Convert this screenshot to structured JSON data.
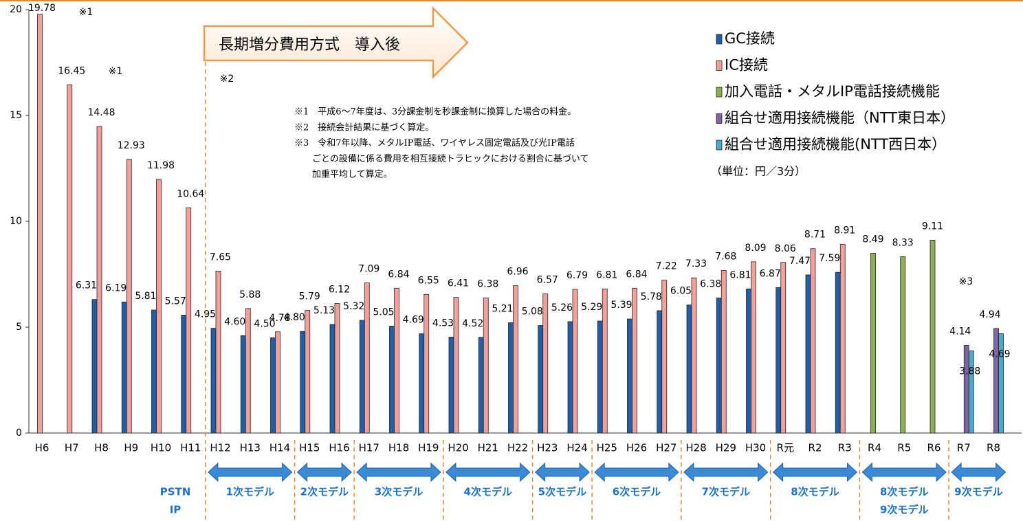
{
  "chart_data": {
    "type": "bar",
    "categories": [
      "H6",
      "H7",
      "H8",
      "H9",
      "H10",
      "H11",
      "H12",
      "H13",
      "H14",
      "H15",
      "H16",
      "H17",
      "H18",
      "H19",
      "H20",
      "H21",
      "H22",
      "H23",
      "H24",
      "H25",
      "H26",
      "H27",
      "H28",
      "H29",
      "H30",
      "R元",
      "R2",
      "R3",
      "R4",
      "R5",
      "R6",
      "R7",
      "R8"
    ],
    "series": [
      {
        "name": "GC接続",
        "color": "#1f5fa8",
        "values": [
          null,
          null,
          6.31,
          6.19,
          5.81,
          5.57,
          4.95,
          4.6,
          4.5,
          4.8,
          5.13,
          5.32,
          5.05,
          4.69,
          4.53,
          4.52,
          5.21,
          5.08,
          5.26,
          5.29,
          5.39,
          5.78,
          6.05,
          6.38,
          6.81,
          6.87,
          7.47,
          7.59,
          null,
          null,
          null,
          null,
          null
        ],
        "value_labels": [
          null,
          null,
          "6.31",
          "6.19",
          "5.81",
          "5.57",
          "4.95",
          "4.60",
          "4.50",
          "4.80",
          "5.13",
          "5.32",
          "5.05",
          "4.69",
          "4.53",
          "4.52",
          "5.21",
          "5.08",
          "5.26",
          "5.29",
          "5.39",
          "5.78",
          "6.05",
          "6.38",
          "6.81",
          "6.87",
          "7.47",
          "7.59",
          null,
          null,
          null,
          null,
          null
        ]
      },
      {
        "name": "IC接続",
        "color": "#f4a09a",
        "values": [
          19.78,
          16.45,
          14.48,
          12.93,
          11.98,
          10.64,
          7.65,
          5.88,
          4.78,
          5.79,
          6.12,
          7.09,
          6.84,
          6.55,
          6.41,
          6.38,
          6.96,
          6.57,
          6.79,
          6.81,
          6.84,
          7.22,
          7.33,
          7.68,
          8.09,
          8.06,
          8.71,
          8.91,
          null,
          null,
          null,
          null,
          null
        ],
        "value_labels": [
          "19.78",
          "16.45",
          "14.48",
          "12.93",
          "11.98",
          "10.64",
          "7.65",
          "5.88",
          "4.78",
          "5.79",
          "6.12",
          "7.09",
          "6.84",
          "6.55",
          "6.41",
          "6.38",
          "6.96",
          "6.57",
          "6.79",
          "6.81",
          "6.84",
          "7.22",
          "7.33",
          "7.68",
          "8.09",
          "8.06",
          "8.71",
          "8.91",
          null,
          null,
          null,
          null,
          null
        ]
      },
      {
        "name": "加入電話・メタルIP電話接続機能",
        "color": "#8fb050",
        "values": [
          null,
          null,
          null,
          null,
          null,
          null,
          null,
          null,
          null,
          null,
          null,
          null,
          null,
          null,
          null,
          null,
          null,
          null,
          null,
          null,
          null,
          null,
          null,
          null,
          null,
          null,
          null,
          null,
          8.49,
          8.33,
          9.11,
          null,
          null
        ],
        "value_labels": [
          null,
          null,
          null,
          null,
          null,
          null,
          null,
          null,
          null,
          null,
          null,
          null,
          null,
          null,
          null,
          null,
          null,
          null,
          null,
          null,
          null,
          null,
          null,
          null,
          null,
          null,
          null,
          null,
          "8.49",
          "8.33",
          "9.11",
          null,
          null
        ]
      },
      {
        "name": "組合せ適用接続機能（NTT東日本）",
        "color": "#8064a2",
        "values": [
          null,
          null,
          null,
          null,
          null,
          null,
          null,
          null,
          null,
          null,
          null,
          null,
          null,
          null,
          null,
          null,
          null,
          null,
          null,
          null,
          null,
          null,
          null,
          null,
          null,
          null,
          null,
          null,
          null,
          null,
          null,
          4.14,
          4.94
        ],
        "value_labels": [
          null,
          null,
          null,
          null,
          null,
          null,
          null,
          null,
          null,
          null,
          null,
          null,
          null,
          null,
          null,
          null,
          null,
          null,
          null,
          null,
          null,
          null,
          null,
          null,
          null,
          null,
          null,
          null,
          null,
          null,
          null,
          "4.14",
          "4.94"
        ]
      },
      {
        "name": "組合せ適用接続機能(NTT西日本）",
        "color": "#4bacc6",
        "values": [
          null,
          null,
          null,
          null,
          null,
          null,
          null,
          null,
          null,
          null,
          null,
          null,
          null,
          null,
          null,
          null,
          null,
          null,
          null,
          null,
          null,
          null,
          null,
          null,
          null,
          null,
          null,
          null,
          null,
          null,
          null,
          3.88,
          4.69
        ],
        "value_labels": [
          null,
          null,
          null,
          null,
          null,
          null,
          null,
          null,
          null,
          null,
          null,
          null,
          null,
          null,
          null,
          null,
          null,
          null,
          null,
          null,
          null,
          null,
          null,
          null,
          null,
          null,
          null,
          null,
          null,
          null,
          null,
          "3.88",
          "4.69"
        ]
      }
    ],
    "ylim": [
      0,
      20
    ],
    "yticks": [
      0,
      5,
      10,
      15,
      20
    ],
    "grid": false,
    "legend_position": "upper right",
    "unit": "（単位：円／3分）",
    "header_arrow": "長期増分費用方式　導入後",
    "annotations": [
      "※1",
      "※1",
      "※2",
      "※3"
    ],
    "notes": [
      "※1　平成6～7年度は、3分課金制を秒課金制に換算した場合の料金。",
      "※2　接続会計結果に基づく算定。",
      "※3　令和7年以降、メタルIP電話、ワイヤレス固定電話及び光IP電話",
      "ごとの設備に係る費用を相互接続トラヒックにおける割合に基づいて",
      "加重平均して算定。"
    ],
    "periods": [
      [
        "PSTN",
        "IP"
      ],
      [
        "1次モデル"
      ],
      [
        "2次モデル"
      ],
      [
        "3次モデル"
      ],
      [
        "4次モデル"
      ],
      [
        "5次モデル"
      ],
      [
        "6次モデル"
      ],
      [
        "7次モデル"
      ],
      [
        "8次モデル"
      ],
      [
        "8次モデル",
        "9次モデル"
      ],
      [
        "9次モデル"
      ]
    ]
  }
}
